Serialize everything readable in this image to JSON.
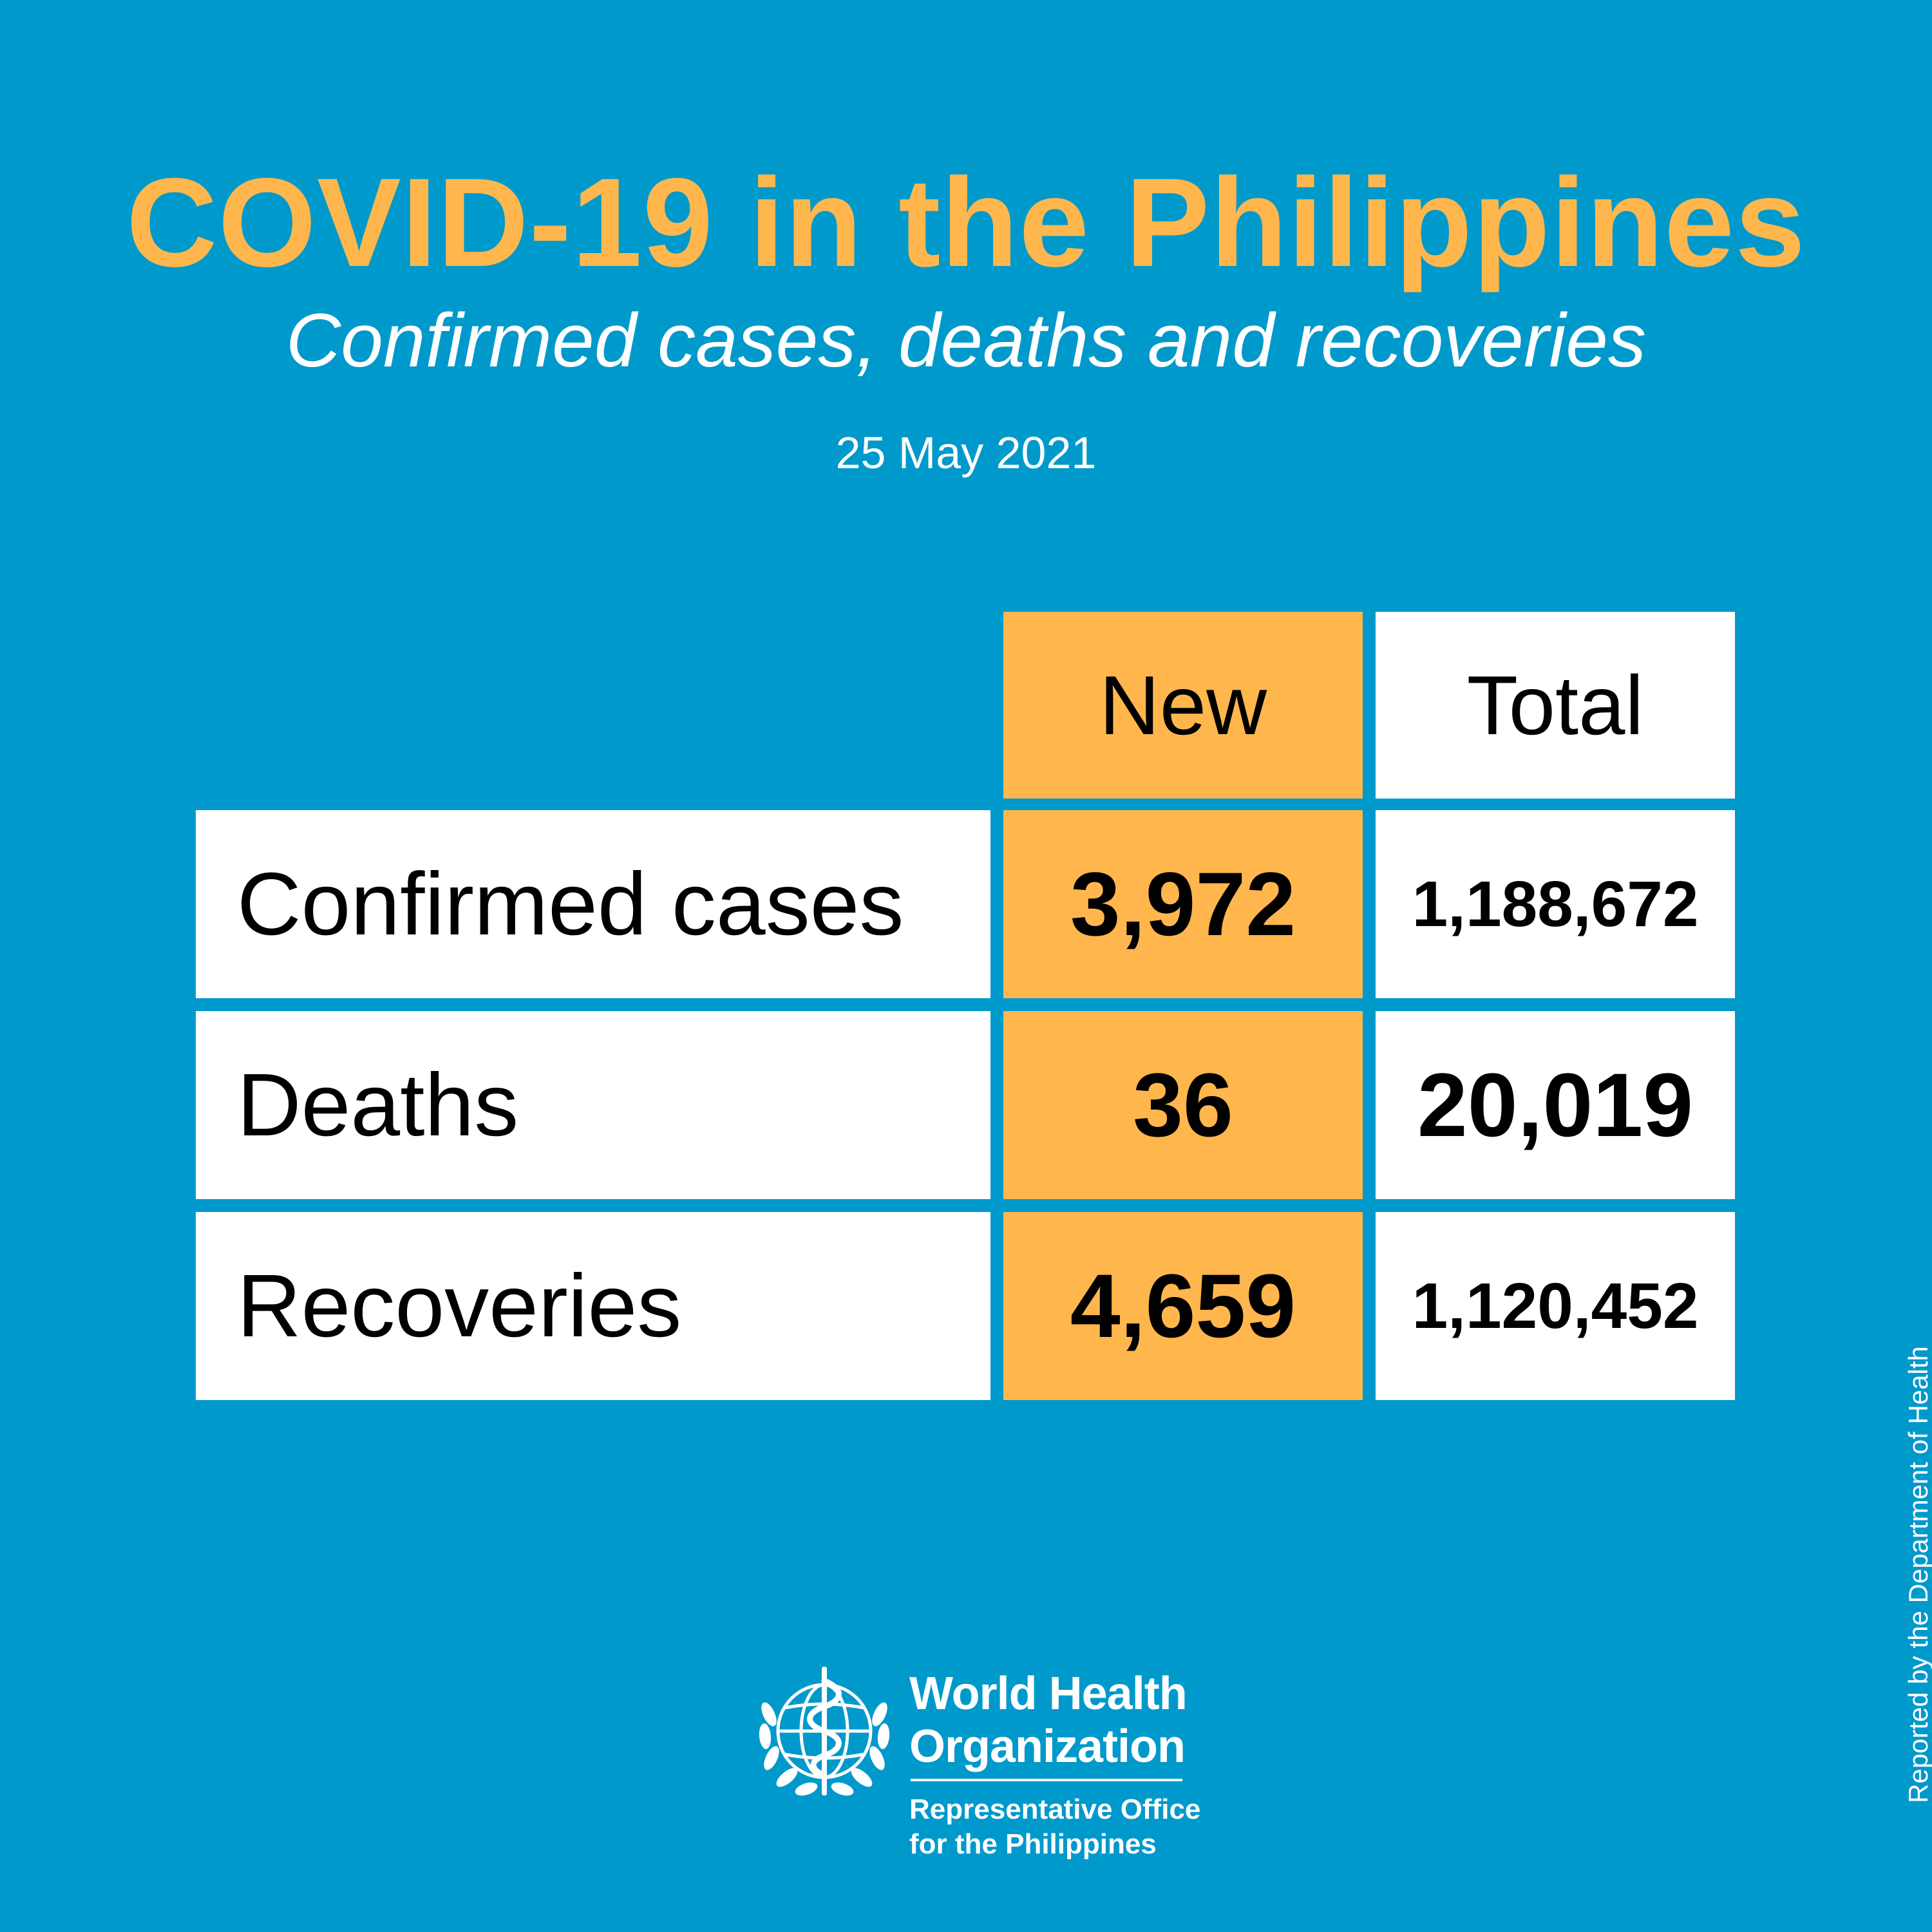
{
  "header": {
    "title": "COVID-19 in the Philippines",
    "subtitle": "Confirmed cases, deaths and recoveries",
    "date": "25 May 2021"
  },
  "table": {
    "columns": [
      "New",
      "Total"
    ],
    "rows": [
      {
        "label": "Confirmed cases",
        "new": "3,972",
        "total": "1,188,672"
      },
      {
        "label": "Deaths",
        "new": "36",
        "total": "20,019"
      },
      {
        "label": "Recoveries",
        "new": "4,659",
        "total": "1,120,452"
      }
    ]
  },
  "footer": {
    "org_name_line1": "World Health",
    "org_name_line2": "Organization",
    "office_line1": "Representative Office",
    "office_line2": "for the Philippines",
    "logo_icon": "who-emblem-icon",
    "side_note": "Reported by the Department of Health"
  },
  "colors": {
    "background": "#0099cc",
    "accent": "#ffb74d",
    "cell": "#ffffff",
    "text": "#000000"
  }
}
